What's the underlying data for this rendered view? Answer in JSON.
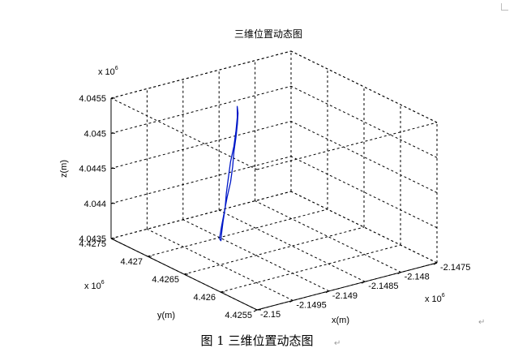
{
  "chart_data": {
    "type": "line3d",
    "title": "三维位置动态图",
    "xlabel": "x(m)",
    "ylabel": "y(m)",
    "zlabel": "z(m)",
    "x_exponent": "x 10",
    "y_exponent": "x 10",
    "z_exponent": "x 10",
    "exponent_power": "6",
    "x_ticks": [
      "-2.15",
      "-2.1495",
      "-2.149",
      "-2.1485",
      "-2.148",
      "-2.1475"
    ],
    "y_ticks": [
      "4.4255",
      "4.426",
      "4.4265",
      "4.427",
      "4.4275"
    ],
    "z_ticks": [
      "4.0435",
      "4.044",
      "4.0445",
      "4.045",
      "4.0455"
    ],
    "grid": true,
    "box": true,
    "series": [
      {
        "color": "#0018c8",
        "note_points": "scaled units 1e6",
        "points_x": [
          -2.14966,
          -2.14955,
          -2.14942,
          -2.14928,
          -2.14912,
          -2.14897,
          -2.14883,
          -2.14869,
          -2.14857,
          -2.14848,
          -2.14844,
          -2.14845,
          -2.14852,
          -2.14864,
          -2.14879,
          -2.14896,
          -2.14911,
          -2.14926,
          -2.1494,
          -2.14953,
          -2.14962,
          -2.14967,
          -2.14966
        ],
        "points_y": [
          4.42635,
          4.42643,
          4.42652,
          4.42662,
          4.42673,
          4.42685,
          4.42697,
          4.42708,
          4.42718,
          4.42726,
          4.42731,
          4.4273,
          4.42723,
          4.42713,
          4.42701,
          4.42689,
          4.42677,
          4.42665,
          4.42653,
          4.42643,
          4.42636,
          4.42632,
          4.42635
        ],
        "points_z": [
          4.04399,
          4.0441,
          4.04422,
          4.04434,
          4.04446,
          4.04458,
          4.0447,
          4.04481,
          4.04491,
          4.045,
          4.04506,
          4.04505,
          4.04497,
          4.04486,
          4.04474,
          4.04462,
          4.0445,
          4.04438,
          4.04426,
          4.04415,
          4.04405,
          4.04398,
          4.04399
        ]
      }
    ]
  },
  "caption": "图 1  三维位置动态图",
  "return_mark": "↵"
}
